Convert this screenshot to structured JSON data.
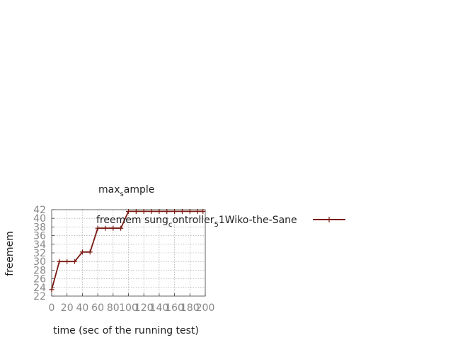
{
  "chart_data": {
    "type": "line",
    "title_main": "max",
    "title_sub": "s",
    "title_rest": "ample",
    "xlabel": "time (sec of the running test)",
    "ylabel": "freemem",
    "xlim": [
      0,
      200
    ],
    "ylim": [
      22,
      42
    ],
    "xticks": [
      0,
      20,
      40,
      60,
      80,
      100,
      120,
      140,
      160,
      180,
      200
    ],
    "yticks": [
      22,
      24,
      26,
      28,
      30,
      32,
      34,
      36,
      38,
      40,
      42
    ],
    "grid": true,
    "legend_placement": "top-right",
    "legend_parts": {
      "p1": "freemem sung",
      "sub1": "c",
      "p2": "ontroller",
      "sub2": "5",
      "p3": "1Wiko-the-Sane"
    },
    "series": [
      {
        "name": "freemem sung_controller_5 1Wiko-the-Sane",
        "color": "#7a1a12",
        "x": [
          0,
          10,
          20,
          30,
          40,
          50,
          60,
          70,
          80,
          90,
          100,
          110,
          120,
          130,
          140,
          150,
          160,
          170,
          180,
          190,
          197
        ],
        "y": [
          23.5,
          30.0,
          30.0,
          30.0,
          32.2,
          32.2,
          37.7,
          37.7,
          37.7,
          37.7,
          41.6,
          41.6,
          41.6,
          41.6,
          41.6,
          41.6,
          41.6,
          41.6,
          41.6,
          41.6,
          41.6
        ]
      }
    ]
  }
}
